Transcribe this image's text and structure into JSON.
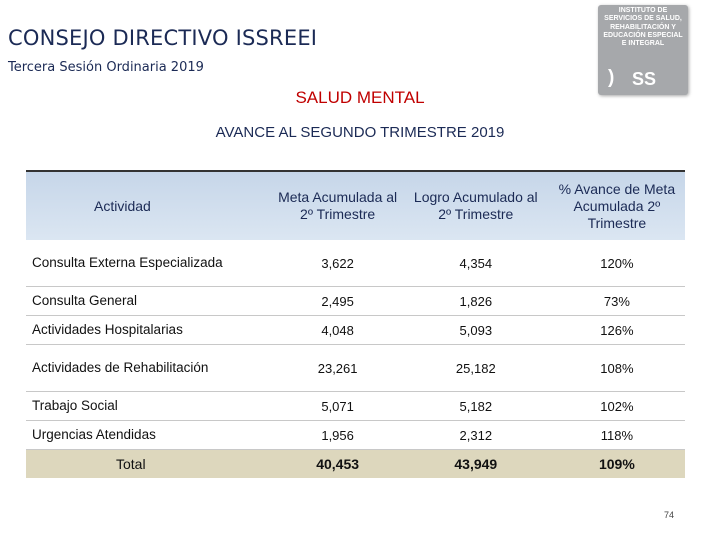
{
  "header": {
    "title": "CONSEJO DIRECTIVO ISSREEI",
    "subtitle": "Tercera Sesión Ordinaria 2019"
  },
  "logo": {
    "text": "INSTITUTO DE SERVICIOS DE SALUD, REHABILITACIÓN Y EDUCACIÓN ESPECIAL E INTEGRAL",
    "mark": ")",
    "abbrev": "SS"
  },
  "section": {
    "title": "SALUD MENTAL",
    "subtitle": "AVANCE AL SEGUNDO TRIMESTRE 2019"
  },
  "table": {
    "headers": [
      "Actividad",
      "Meta Acumulada al 2º Trimestre",
      "Logro Acumulado al 2º Trimestre",
      "% Avance de Meta Acumulada 2º Trimestre"
    ],
    "rows": [
      {
        "activity": "Consulta Externa Especializada",
        "meta": "3,622",
        "logro": "4,354",
        "avance": "120%"
      },
      {
        "activity": "Consulta General",
        "meta": "2,495",
        "logro": "1,826",
        "avance": "73%"
      },
      {
        "activity": "Actividades Hospitalarias",
        "meta": "4,048",
        "logro": "5,093",
        "avance": "126%"
      },
      {
        "activity": "Actividades de Rehabilitación",
        "meta": "23,261",
        "logro": "25,182",
        "avance": "108%"
      },
      {
        "activity": "Trabajo Social",
        "meta": "5,071",
        "logro": "5,182",
        "avance": "102%"
      },
      {
        "activity": "Urgencias Atendidas",
        "meta": "1,956",
        "logro": "2,312",
        "avance": "118%"
      }
    ],
    "total": {
      "activity": "Total",
      "meta": "40,453",
      "logro": "43,949",
      "avance": "109%"
    }
  },
  "footer": {
    "page_number": "74"
  }
}
